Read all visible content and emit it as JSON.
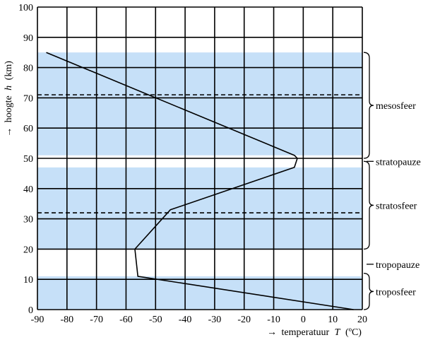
{
  "chart_data": {
    "type": "line",
    "xlabel_arrow": "→",
    "xlabel": "temperatuur",
    "xlabel_var": "T",
    "xlabel_unit": "(ºC)",
    "ylabel_arrow": "→",
    "ylabel": "hoogte",
    "ylabel_var": "h",
    "ylabel_unit": "(km)",
    "xlim": [
      -90,
      20
    ],
    "ylim": [
      0,
      100
    ],
    "x_ticks": [
      -90,
      -80,
      -70,
      -60,
      -50,
      -40,
      -30,
      -20,
      -10,
      0,
      10,
      20
    ],
    "y_ticks": [
      0,
      10,
      20,
      30,
      40,
      50,
      60,
      70,
      80,
      90,
      100
    ],
    "grid": true,
    "series": [
      {
        "x": [
          -87,
          -3,
          -2,
          -3,
          -45,
          -57,
          -57,
          -56,
          17
        ],
        "y": [
          85,
          51,
          50,
          47,
          33,
          20,
          20,
          11,
          0
        ]
      }
    ],
    "shaded_bands": [
      {
        "y_range": [
          0,
          11
        ],
        "color": "#c6e0f8"
      },
      {
        "y_range": [
          20,
          47
        ],
        "color": "#c6e0f8"
      },
      {
        "y_range": [
          51,
          85
        ],
        "color": "#c6e0f8"
      }
    ],
    "dashed_lines": [
      {
        "y": 32
      },
      {
        "y": 71
      }
    ],
    "layers": [
      {
        "name": "mesosfeer",
        "kind": "brace",
        "y_range": [
          50,
          85
        ]
      },
      {
        "name": "stratopauze",
        "kind": "label",
        "y": 49
      },
      {
        "name": "stratosfeer",
        "kind": "brace",
        "y_range": [
          20,
          49
        ]
      },
      {
        "name": "tropopauze",
        "kind": "label",
        "y": 15
      },
      {
        "name": "troposfeer",
        "kind": "brace",
        "y_range": [
          0,
          12
        ]
      }
    ]
  },
  "colors": {
    "band": "#c6e0f8",
    "line": "#000000",
    "grid": "#000000"
  }
}
